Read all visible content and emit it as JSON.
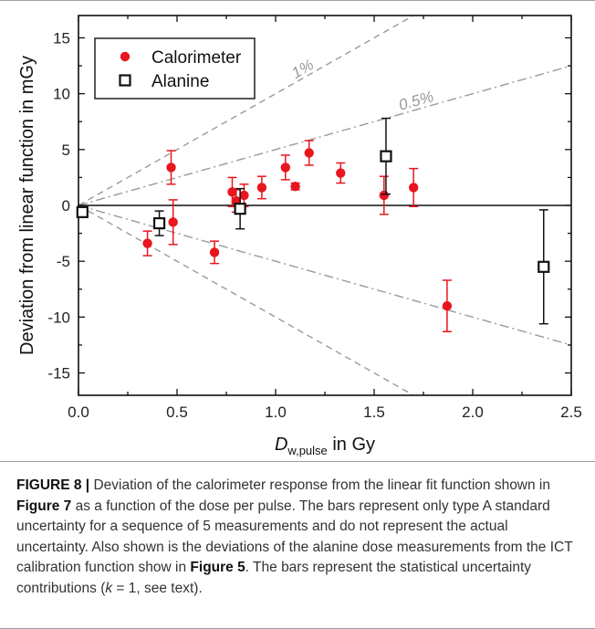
{
  "chart_data": {
    "type": "scatter",
    "xlabel_main": "D",
    "xlabel_sub": "w,pulse",
    "xlabel_suffix": " in Gy",
    "ylabel": "Deviation from linear function in mGy",
    "xlim": [
      0.0,
      2.5
    ],
    "ylim": [
      -17,
      17
    ],
    "xticks": [
      "0.0",
      "0.5",
      "1.0",
      "1.5",
      "2.0",
      "2.5"
    ],
    "yticks": [
      "15",
      "10",
      "5",
      "0",
      "-5",
      "-10",
      "-15"
    ],
    "grid": false,
    "legend_position": "top-left",
    "series": [
      {
        "name": "Calorimeter",
        "marker": "filled-circle",
        "color": "#e8161e",
        "x": [
          0.35,
          0.47,
          0.48,
          0.69,
          0.78,
          0.8,
          0.84,
          0.93,
          1.05,
          1.1,
          1.17,
          1.33,
          1.55,
          1.7,
          1.87
        ],
        "y": [
          -3.4,
          3.4,
          -1.5,
          -4.2,
          1.2,
          0.4,
          0.9,
          1.6,
          3.4,
          1.7,
          4.7,
          2.9,
          0.9,
          1.6,
          -9.0
        ],
        "err": [
          1.1,
          1.5,
          2.0,
          1.0,
          1.3,
          1.0,
          1.0,
          1.0,
          1.1,
          0.3,
          1.1,
          0.9,
          1.7,
          1.7,
          2.3
        ]
      },
      {
        "name": "Alanine",
        "marker": "open-square",
        "color": "#111111",
        "x": [
          0.02,
          0.41,
          0.82,
          1.56,
          2.36
        ],
        "y": [
          -0.6,
          -1.6,
          -0.3,
          4.4,
          -5.5
        ],
        "err": [
          0.0,
          1.1,
          1.8,
          3.4,
          5.1
        ]
      }
    ],
    "reference_lines": [
      {
        "label": "1%",
        "slope": 10,
        "style": "dashed"
      },
      {
        "label": "0.5%",
        "slope": 5,
        "style": "dash-dot"
      }
    ]
  },
  "caption": {
    "prefix": "FIGURE 8 | ",
    "p1": "Deviation of the calorimeter response from the linear fit function shown in ",
    "ref1": "Figure 7",
    "p2": " as a function of the dose per pulse. The bars represent only type A standard uncertainty for a sequence of 5 measurements and do not represent the actual uncertainty. Also shown is the deviations of the alanine dose measurements from the ICT calibration function show in ",
    "ref2": "Figure 5",
    "p3": ". The bars represent the statistical uncertainty contributions (",
    "k": "k",
    "p4": " = 1, see text)."
  }
}
